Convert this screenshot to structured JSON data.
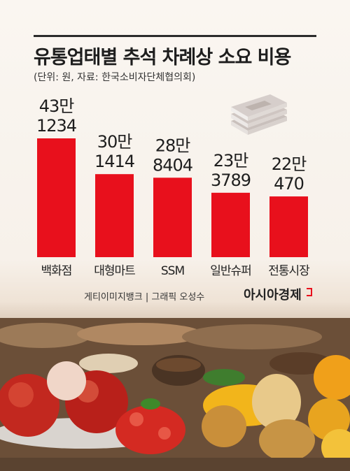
{
  "chart_data": {
    "type": "bar",
    "title": "유통업태별 추석 차례상 소요 비용",
    "subtitle": "(단위: 원, 자료: 한국소비자단체협의회)",
    "categories": [
      "백화점",
      "대형마트",
      "SSM",
      "일반슈퍼",
      "전통시장"
    ],
    "values": [
      431234,
      301414,
      288404,
      233789,
      220470
    ],
    "value_labels": [
      [
        "43만",
        "1234"
      ],
      [
        "30만",
        "1414"
      ],
      [
        "28만",
        "8404"
      ],
      [
        "23만",
        "3789"
      ],
      [
        "22만",
        "470"
      ]
    ],
    "bar_color": "#e8101c",
    "ylim": [
      0,
      431234
    ],
    "grid": false,
    "legend": "none"
  },
  "footer": {
    "credit": "게티이미지뱅크 | 그래픽 오성수",
    "brand": "아시아경제"
  },
  "decorations": [
    "money-stack-icon",
    "food-background-photo"
  ]
}
